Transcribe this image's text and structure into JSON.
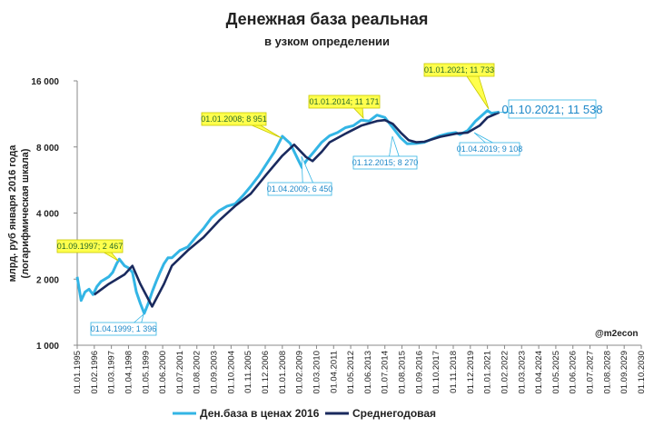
{
  "chart_data": {
    "type": "line",
    "title": "Денежная база реальная",
    "subtitle": "в узком определении",
    "ylabel": [
      "млрд. руб января 2016 года",
      "(логарифмическая шкала)"
    ],
    "watermark": "@m2econ",
    "log_scale": true,
    "grid": false,
    "legend": "bottom",
    "ylim": [
      1000,
      16000
    ],
    "yticks": [
      {
        "value": 1000,
        "label": "1 000"
      },
      {
        "value": 2000,
        "label": "2 000"
      },
      {
        "value": 4000,
        "label": "4 000"
      },
      {
        "value": 8000,
        "label": "8 000"
      },
      {
        "value": 16000,
        "label": "16 000"
      }
    ],
    "xlim": [
      "01.01.1995",
      "01.10.2030"
    ],
    "xticks": [
      "01.01.1995",
      "01.02.1996",
      "01.03.1997",
      "01.04.1998",
      "01.05.1999",
      "01.06.2000",
      "01.07.2001",
      "01.08.2002",
      "01.09.2003",
      "01.10.2004",
      "01.11.2005",
      "01.12.2006",
      "01.01.2008",
      "01.02.2009",
      "01.03.2010",
      "01.04.2011",
      "01.05.2012",
      "01.06.2013",
      "01.07.2014",
      "01.08.2015",
      "01.09.2016",
      "01.10.2017",
      "01.11.2018",
      "01.12.2019",
      "01.01.2021",
      "01.02.2022",
      "01.03.2023",
      "01.04.2024",
      "01.05.2025",
      "01.06.2026",
      "01.07.2027",
      "01.08.2028",
      "01.09.2029",
      "01.10.2030"
    ],
    "series": [
      {
        "name": "Ден.база в ценах 2016",
        "color": "#33b5e5",
        "x": [
          "01.01.1995",
          "01.04.1995",
          "01.07.1995",
          "01.10.1995",
          "01.01.1996",
          "01.04.1996",
          "01.07.1996",
          "01.10.1996",
          "01.01.1997",
          "01.04.1997",
          "01.07.1997",
          "01.09.1997",
          "01.01.1998",
          "01.04.1998",
          "01.07.1998",
          "01.10.1998",
          "01.01.1999",
          "01.04.1999",
          "01.07.1999",
          "01.10.1999",
          "01.01.2000",
          "01.04.2000",
          "01.07.2000",
          "01.10.2000",
          "01.01.2001",
          "01.07.2001",
          "01.01.2002",
          "01.07.2002",
          "01.01.2003",
          "01.07.2003",
          "01.01.2004",
          "01.07.2004",
          "01.01.2005",
          "01.07.2005",
          "01.01.2006",
          "01.07.2006",
          "01.01.2007",
          "01.07.2007",
          "01.01.2008",
          "01.07.2008",
          "01.01.2009",
          "01.04.2009",
          "01.07.2009",
          "01.01.2010",
          "01.07.2010",
          "01.01.2011",
          "01.07.2011",
          "01.01.2012",
          "01.07.2012",
          "01.01.2013",
          "01.07.2013",
          "01.01.2014",
          "01.07.2014",
          "01.01.2015",
          "01.07.2015",
          "01.12.2015",
          "01.07.2016",
          "01.01.2017",
          "01.07.2017",
          "01.01.2018",
          "01.07.2018",
          "01.01.2019",
          "01.04.2019",
          "01.10.2019",
          "01.04.2020",
          "01.10.2020",
          "01.01.2021",
          "01.04.2021",
          "01.10.2021"
        ],
        "values": [
          2050,
          1600,
          1750,
          1800,
          1700,
          1850,
          1950,
          2000,
          2050,
          2150,
          2350,
          2467,
          2300,
          2250,
          2150,
          1750,
          1550,
          1396,
          1550,
          1750,
          1950,
          2150,
          2350,
          2500,
          2500,
          2700,
          2800,
          3100,
          3400,
          3800,
          4100,
          4300,
          4400,
          4800,
          5300,
          5900,
          6700,
          7600,
          8951,
          8300,
          7000,
          6450,
          6900,
          7600,
          8400,
          9000,
          9300,
          9800,
          10000,
          10600,
          10500,
          11171,
          10900,
          9800,
          8800,
          8270,
          8300,
          8400,
          8700,
          9000,
          9200,
          9300,
          9108,
          9500,
          10500,
          11300,
          11733,
          11400,
          11538
        ]
      },
      {
        "name": "Среднегодовая",
        "color": "#1a2a5e",
        "x": [
          "01.02.1996",
          "01.01.1997",
          "01.01.1998",
          "01.07.1998",
          "01.01.1999",
          "01.10.1999",
          "01.07.2000",
          "01.01.2001",
          "01.01.2002",
          "01.01.2003",
          "01.01.2004",
          "01.01.2005",
          "01.01.2006",
          "01.01.2007",
          "01.01.2008",
          "01.10.2008",
          "01.07.2009",
          "01.12.2009",
          "01.07.2010",
          "01.01.2011",
          "01.01.2012",
          "01.01.2013",
          "01.01.2014",
          "01.07.2014",
          "01.01.2015",
          "01.07.2015",
          "01.01.2016",
          "01.07.2016",
          "01.01.2017",
          "01.01.2018",
          "01.01.2019",
          "01.10.2019",
          "01.07.2020",
          "01.01.2021",
          "01.10.2021"
        ],
        "values": [
          1700,
          1900,
          2100,
          2300,
          1900,
          1500,
          1900,
          2300,
          2700,
          3100,
          3700,
          4300,
          4900,
          6000,
          7300,
          8200,
          7200,
          6900,
          7600,
          8400,
          9200,
          10000,
          10500,
          10600,
          10200,
          9300,
          8600,
          8400,
          8450,
          8900,
          9200,
          9300,
          10000,
          10900,
          11500
        ]
      }
    ],
    "annotations": [
      "01.09.1997; 2 467",
      "01.04.1999; 1 396",
      "01.01.2008; 8 951",
      "01.04.2009; 6 450",
      "01.01.2014; 11 171",
      "01.12.2015; 8 270",
      "01.01.2021; 11 733",
      "01.04.2019; 9 108",
      "01.10.2021; 11 538"
    ]
  }
}
